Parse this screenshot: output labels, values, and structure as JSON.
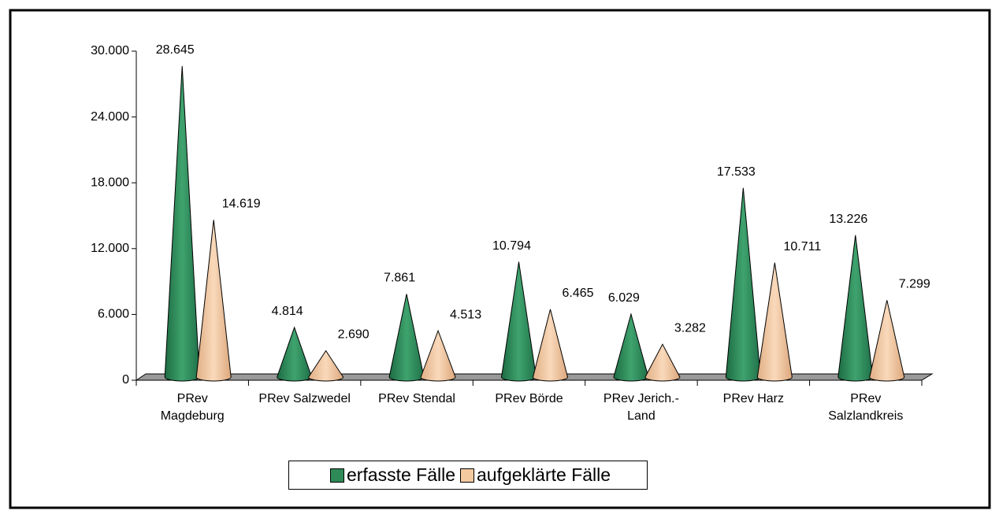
{
  "chart_data": {
    "type": "cone",
    "categories": [
      "PRev Magdeburg",
      "PRev Salzwedel",
      "PRev Stendal",
      "PRev Börde",
      "PRev Jerich.-Land",
      "PRev Harz",
      "PRev Salzlandkreis"
    ],
    "series": [
      {
        "name": "erfasste Fälle",
        "color": "#2e8b57",
        "values": [
          28645,
          4814,
          7861,
          10794,
          6029,
          17533,
          13226
        ],
        "value_labels": [
          "28.645",
          "4.814",
          "7.861",
          "10.794",
          "6.029",
          "17.533",
          "13.226"
        ]
      },
      {
        "name": "aufgeklärte Fälle",
        "color": "#f5c9a0",
        "values": [
          14619,
          2690,
          4513,
          6465,
          3282,
          10711,
          7299
        ],
        "value_labels": [
          "14.619",
          "2.690",
          "4.513",
          "6.465",
          "3.282",
          "10.711",
          "7.299"
        ]
      }
    ],
    "ylim": [
      0,
      30000
    ],
    "yticks": [
      0,
      {
        "value": 6000,
        "label": "6.000"
      },
      {
        "value": 12000,
        "label": "12.000"
      },
      {
        "value": 18000,
        "label": "18.000"
      },
      {
        "value": 24000,
        "label": "24.000"
      },
      {
        "value": 30000,
        "label": "30.000"
      }
    ],
    "legend": "bottom"
  }
}
